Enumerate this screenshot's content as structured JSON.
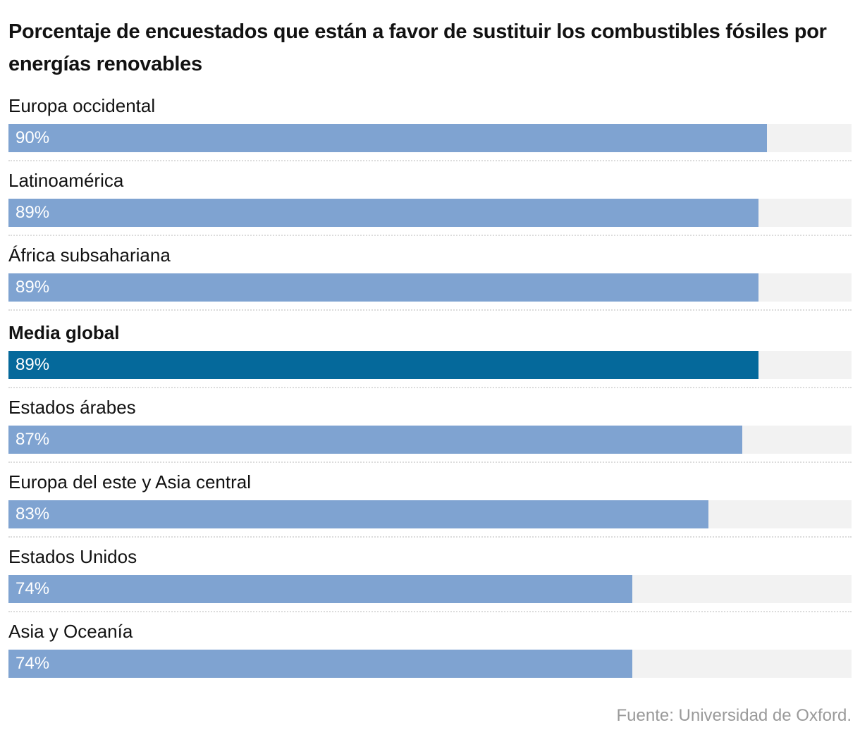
{
  "chart_data": {
    "type": "bar",
    "orientation": "horizontal",
    "title": "Porcentaje de encuestados que están a favor de sustituir los combustibles fósiles por energías renovables",
    "categories": [
      "Europa occidental",
      "Latinoamérica",
      "África subsahariana",
      "Media global",
      "Estados árabes",
      "Europa del este y Asia central",
      "Estados Unidos",
      "Asia y Oceanía"
    ],
    "values": [
      90,
      89,
      89,
      89,
      87,
      83,
      74,
      74
    ],
    "value_labels": [
      "90%",
      "89%",
      "89%",
      "89%",
      "87%",
      "83%",
      "74%",
      "74%"
    ],
    "highlighted": [
      "Media global"
    ],
    "xlim": [
      0,
      100
    ],
    "xlabel": "",
    "ylabel": "",
    "grid": false,
    "unit": "%",
    "source": "Fuente: Universidad de Oxford."
  },
  "colors": {
    "bar": "#7fa3d1",
    "highlight_bar": "#05699b",
    "track": "#f2f2f2",
    "source_text": "#9a9a9a"
  }
}
